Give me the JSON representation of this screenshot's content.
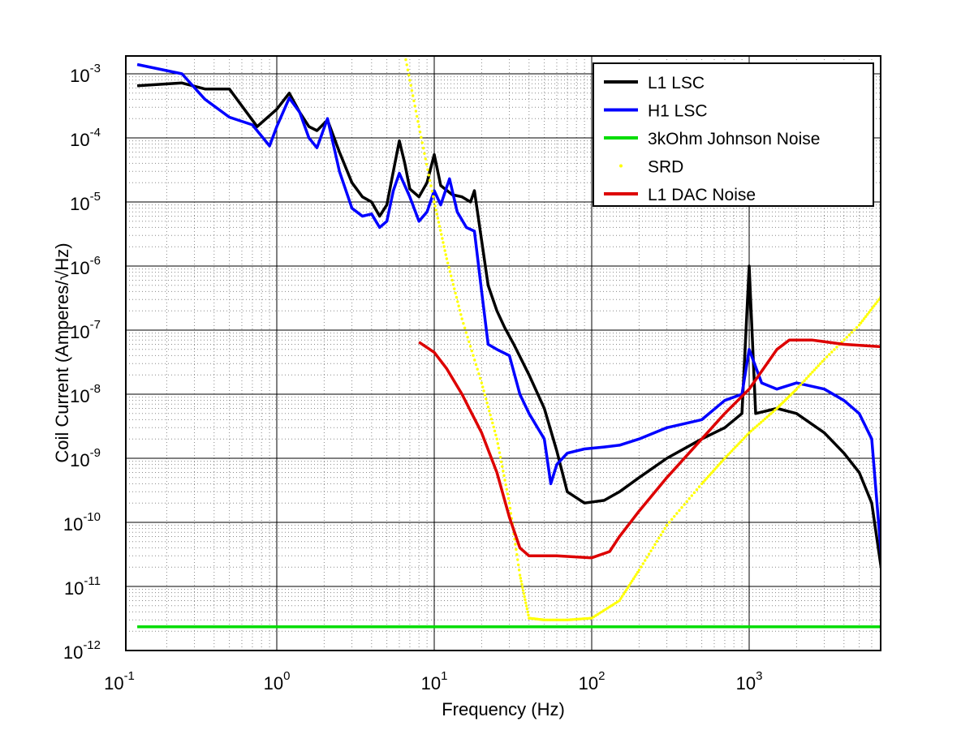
{
  "chart_data": {
    "type": "line",
    "title": "",
    "xlabel": "Frequency (Hz)",
    "ylabel": "Coil Current (Amperes/√Hz)",
    "x_scale": "log",
    "y_scale": "log",
    "xlim": [
      0.1,
      7000
    ],
    "ylim": [
      1e-12,
      0.002
    ],
    "grid": true,
    "legend_position": "top-right",
    "x_ticks": [
      {
        "value": 0.1,
        "base": "10",
        "exp": "-1"
      },
      {
        "value": 1,
        "base": "10",
        "exp": "0"
      },
      {
        "value": 10,
        "base": "10",
        "exp": "1"
      },
      {
        "value": 100,
        "base": "10",
        "exp": "2"
      },
      {
        "value": 1000,
        "base": "10",
        "exp": "3"
      }
    ],
    "y_ticks": [
      {
        "value": 1e-12,
        "base": "10",
        "exp": "-12"
      },
      {
        "value": 1e-11,
        "base": "10",
        "exp": "-11"
      },
      {
        "value": 1e-10,
        "base": "10",
        "exp": "-10"
      },
      {
        "value": 1e-09,
        "base": "10",
        "exp": "-9"
      },
      {
        "value": 1e-08,
        "base": "10",
        "exp": "-8"
      },
      {
        "value": 1e-07,
        "base": "10",
        "exp": "-7"
      },
      {
        "value": 1e-06,
        "base": "10",
        "exp": "-6"
      },
      {
        "value": 1e-05,
        "base": "10",
        "exp": "-5"
      },
      {
        "value": 0.0001,
        "base": "10",
        "exp": "-4"
      },
      {
        "value": 0.001,
        "base": "10",
        "exp": "-3"
      }
    ],
    "series": [
      {
        "name": "L1 LSC",
        "color": "#000000",
        "style": "line",
        "points": [
          [
            0.13,
            0.00065
          ],
          [
            0.25,
            0.00072
          ],
          [
            0.35,
            0.00058
          ],
          [
            0.5,
            0.00058
          ],
          [
            0.75,
            0.00015
          ],
          [
            1.0,
            0.00028
          ],
          [
            1.2,
            0.0005
          ],
          [
            1.4,
            0.00025
          ],
          [
            1.6,
            0.00015
          ],
          [
            1.8,
            0.00013
          ],
          [
            2.1,
            0.00019
          ],
          [
            2.5,
            6e-05
          ],
          [
            3.0,
            2e-05
          ],
          [
            3.5,
            1.2e-05
          ],
          [
            4.0,
            1e-05
          ],
          [
            4.5,
            6e-06
          ],
          [
            5.0,
            9e-06
          ],
          [
            5.5,
            3e-05
          ],
          [
            6.0,
            9e-05
          ],
          [
            6.5,
            4e-05
          ],
          [
            7.0,
            1.6e-05
          ],
          [
            8.0,
            1.2e-05
          ],
          [
            9.0,
            2e-05
          ],
          [
            10.0,
            5.5e-05
          ],
          [
            11.0,
            1.8e-05
          ],
          [
            13.0,
            1.3e-05
          ],
          [
            15.0,
            1.2e-05
          ],
          [
            17.0,
            1e-05
          ],
          [
            18.0,
            1.5e-05
          ],
          [
            20.0,
            2.5e-06
          ],
          [
            22.0,
            5e-07
          ],
          [
            25.0,
            2e-07
          ],
          [
            28.0,
            1.1e-07
          ],
          [
            32.0,
            6e-08
          ],
          [
            40.0,
            2e-08
          ],
          [
            50.0,
            6e-09
          ],
          [
            60.0,
            1.3e-09
          ],
          [
            70.0,
            3e-10
          ],
          [
            90.0,
            2e-10
          ],
          [
            120.0,
            2.2e-10
          ],
          [
            150.0,
            3e-10
          ],
          [
            200.0,
            5e-10
          ],
          [
            300.0,
            1e-09
          ],
          [
            500.0,
            2e-09
          ],
          [
            700.0,
            3e-09
          ],
          [
            900.0,
            5e-09
          ],
          [
            1000.0,
            1e-06
          ],
          [
            1100.0,
            5e-09
          ],
          [
            1500.0,
            6e-09
          ],
          [
            2000.0,
            5e-09
          ],
          [
            3000.0,
            2.5e-09
          ],
          [
            4000.0,
            1.2e-09
          ],
          [
            5000.0,
            6e-10
          ],
          [
            6000.0,
            2e-10
          ],
          [
            7000.0,
            1.5e-11
          ]
        ]
      },
      {
        "name": "H1 LSC",
        "color": "#0000ff",
        "style": "line",
        "points": [
          [
            0.13,
            0.0014
          ],
          [
            0.25,
            0.001
          ],
          [
            0.35,
            0.0004
          ],
          [
            0.5,
            0.00021
          ],
          [
            0.7,
            0.00016
          ],
          [
            0.9,
            7.5e-05
          ],
          [
            1.0,
            0.00015
          ],
          [
            1.2,
            0.00042
          ],
          [
            1.4,
            0.00025
          ],
          [
            1.6,
            0.0001
          ],
          [
            1.8,
            7e-05
          ],
          [
            2.1,
            0.0002
          ],
          [
            2.5,
            3e-05
          ],
          [
            3.0,
            8e-06
          ],
          [
            3.5,
            6e-06
          ],
          [
            4.0,
            6.5e-06
          ],
          [
            4.5,
            4e-06
          ],
          [
            5.0,
            5e-06
          ],
          [
            5.5,
            1.5e-05
          ],
          [
            6.0,
            2.8e-05
          ],
          [
            7.0,
            1.2e-05
          ],
          [
            8.0,
            5e-06
          ],
          [
            9.0,
            7e-06
          ],
          [
            10.0,
            1.5e-05
          ],
          [
            11.0,
            9e-06
          ],
          [
            12.5,
            2.3e-05
          ],
          [
            14.0,
            7e-06
          ],
          [
            16.0,
            4e-06
          ],
          [
            18.0,
            3.5e-06
          ],
          [
            20.0,
            4e-07
          ],
          [
            22.0,
            6e-08
          ],
          [
            25.0,
            5e-08
          ],
          [
            30.0,
            4e-08
          ],
          [
            35.0,
            1e-08
          ],
          [
            40.0,
            5e-09
          ],
          [
            50.0,
            2e-09
          ],
          [
            55.0,
            4e-10
          ],
          [
            60.0,
            8e-10
          ],
          [
            70.0,
            1.2e-09
          ],
          [
            90.0,
            1.4e-09
          ],
          [
            120.0,
            1.5e-09
          ],
          [
            150.0,
            1.6e-09
          ],
          [
            200.0,
            2e-09
          ],
          [
            300.0,
            3e-09
          ],
          [
            500.0,
            4e-09
          ],
          [
            700.0,
            8e-09
          ],
          [
            900.0,
            1e-08
          ],
          [
            1000.0,
            5e-08
          ],
          [
            1200.0,
            1.5e-08
          ],
          [
            1500.0,
            1.2e-08
          ],
          [
            2000.0,
            1.5e-08
          ],
          [
            3000.0,
            1.2e-08
          ],
          [
            4000.0,
            8e-09
          ],
          [
            5000.0,
            5e-09
          ],
          [
            6000.0,
            2e-09
          ],
          [
            7000.0,
            2e-11
          ]
        ]
      },
      {
        "name": "3kOhm Johnson Noise",
        "color": "#00dd00",
        "style": "line",
        "points": [
          [
            0.13,
            2.35e-12
          ],
          [
            7000.0,
            2.35e-12
          ]
        ]
      },
      {
        "name": "SRD",
        "color": "#ffff00",
        "style": "dots",
        "points": [
          [
            6.5,
            0.002
          ],
          [
            8.0,
            0.00015
          ],
          [
            10.0,
            1e-05
          ],
          [
            12.0,
            1.3e-06
          ],
          [
            15.0,
            1.5e-07
          ],
          [
            20.0,
            1.5e-08
          ],
          [
            25.0,
            2e-09
          ],
          [
            30.0,
            2e-10
          ],
          [
            35.0,
            1.5e-11
          ],
          [
            40.0,
            3.2e-12
          ],
          [
            50.0,
            3e-12
          ],
          [
            70.0,
            3e-12
          ],
          [
            100.0,
            3.2e-12
          ],
          [
            150.0,
            6e-12
          ],
          [
            200.0,
            1.8e-11
          ],
          [
            300.0,
            9e-11
          ],
          [
            500.0,
            4e-10
          ],
          [
            700.0,
            1e-09
          ],
          [
            1000.0,
            2.5e-09
          ],
          [
            1500.0,
            6e-09
          ],
          [
            2000.0,
            1.2e-08
          ],
          [
            3000.0,
            3.5e-08
          ],
          [
            5000.0,
            1.2e-07
          ],
          [
            7000.0,
            3.5e-07
          ]
        ]
      },
      {
        "name": "L1 DAC Noise",
        "color": "#dd0000",
        "style": "line",
        "points": [
          [
            8.0,
            6.5e-08
          ],
          [
            10.0,
            4.5e-08
          ],
          [
            12.0,
            2.5e-08
          ],
          [
            15.0,
            1e-08
          ],
          [
            20.0,
            2.5e-09
          ],
          [
            25.0,
            6e-10
          ],
          [
            30.0,
            1.2e-10
          ],
          [
            35.0,
            4e-11
          ],
          [
            40.0,
            3e-11
          ],
          [
            60.0,
            3e-11
          ],
          [
            100.0,
            2.8e-11
          ],
          [
            130.0,
            3.5e-11
          ],
          [
            150.0,
            6e-11
          ],
          [
            200.0,
            1.5e-10
          ],
          [
            300.0,
            5e-10
          ],
          [
            500.0,
            2e-09
          ],
          [
            700.0,
            5e-09
          ],
          [
            1000.0,
            1.2e-08
          ],
          [
            1500.0,
            5e-08
          ],
          [
            1800.0,
            7e-08
          ],
          [
            2500.0,
            7e-08
          ],
          [
            4000.0,
            6e-08
          ],
          [
            7000.0,
            5.5e-08
          ]
        ]
      }
    ]
  }
}
